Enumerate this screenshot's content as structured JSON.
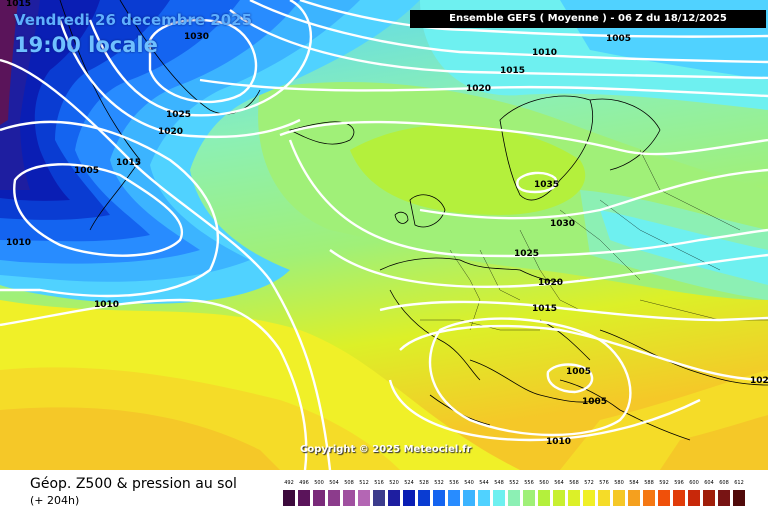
{
  "header": {
    "date": "Vendredi 26 decembre 2025",
    "time": "19:00 locale",
    "run": "Ensemble GEFS  ( Moyenne )  -  06 Z du 18/12/2025"
  },
  "copyright": "Copyright © 2025 Meteociel.fr",
  "legend": {
    "title": "Géop. Z500 & pression au sol",
    "subtitle": "(+ 204h)",
    "scale": [
      {
        "v": "492",
        "c": "#3c0a3c"
      },
      {
        "v": "496",
        "c": "#5a145a"
      },
      {
        "v": "500",
        "c": "#7a2a7a"
      },
      {
        "v": "504",
        "c": "#8c3c8c"
      },
      {
        "v": "508",
        "c": "#a050a0"
      },
      {
        "v": "512",
        "c": "#b466b4"
      },
      {
        "v": "516",
        "c": "#3c3c8c"
      },
      {
        "v": "520",
        "c": "#1e1ea0"
      },
      {
        "v": "524",
        "c": "#0a1eb4"
      },
      {
        "v": "528",
        "c": "#0a3cd2"
      },
      {
        "v": "532",
        "c": "#1464f0"
      },
      {
        "v": "536",
        "c": "#288cff"
      },
      {
        "v": "540",
        "c": "#3cb4ff"
      },
      {
        "v": "544",
        "c": "#50d2ff"
      },
      {
        "v": "548",
        "c": "#6ef0f0"
      },
      {
        "v": "552",
        "c": "#8cf0b4"
      },
      {
        "v": "556",
        "c": "#a0f078"
      },
      {
        "v": "560",
        "c": "#b4f03c"
      },
      {
        "v": "564",
        "c": "#c8f032"
      },
      {
        "v": "568",
        "c": "#dcf028"
      },
      {
        "v": "572",
        "c": "#f0f028"
      },
      {
        "v": "576",
        "c": "#f5dc28"
      },
      {
        "v": "580",
        "c": "#f5c828"
      },
      {
        "v": "584",
        "c": "#f5a01e"
      },
      {
        "v": "588",
        "c": "#f57814"
      },
      {
        "v": "592",
        "c": "#f0500a"
      },
      {
        "v": "596",
        "c": "#e13c0a"
      },
      {
        "v": "600",
        "c": "#c8280a"
      },
      {
        "v": "604",
        "c": "#a01e0a"
      },
      {
        "v": "608",
        "c": "#781414"
      },
      {
        "v": "612",
        "c": "#500a0a"
      }
    ]
  },
  "isobars": [
    {
      "id": "iso-1005-top",
      "v": "1005"
    },
    {
      "id": "iso-1010-top",
      "v": "1010"
    },
    {
      "id": "iso-1015-top",
      "v": "1015"
    },
    {
      "id": "iso-1020-top",
      "v": "1020"
    },
    {
      "id": "iso-1030-nw",
      "v": "1030"
    },
    {
      "id": "iso-1025-nw",
      "v": "1025"
    },
    {
      "id": "iso-1020-nw",
      "v": "1020"
    },
    {
      "id": "iso-1015-w",
      "v": "1015"
    },
    {
      "id": "iso-1005-w",
      "v": "1005"
    },
    {
      "id": "iso-1010-w",
      "v": "1010"
    },
    {
      "id": "iso-1010-sw",
      "v": "1010"
    },
    {
      "id": "iso-1035-scand",
      "v": "1035"
    },
    {
      "id": "iso-1030-scand",
      "v": "1030"
    },
    {
      "id": "iso-1025-eu",
      "v": "1025"
    },
    {
      "id": "iso-1020-eu",
      "v": "1020"
    },
    {
      "id": "iso-1015-eu",
      "v": "1015"
    },
    {
      "id": "iso-1005-med1",
      "v": "1005"
    },
    {
      "id": "iso-1005-med2",
      "v": "1005"
    },
    {
      "id": "iso-1010-south",
      "v": "1010"
    },
    {
      "id": "iso-1015-corner",
      "v": "1015"
    },
    {
      "id": "iso-102-east",
      "v": "102"
    }
  ]
}
